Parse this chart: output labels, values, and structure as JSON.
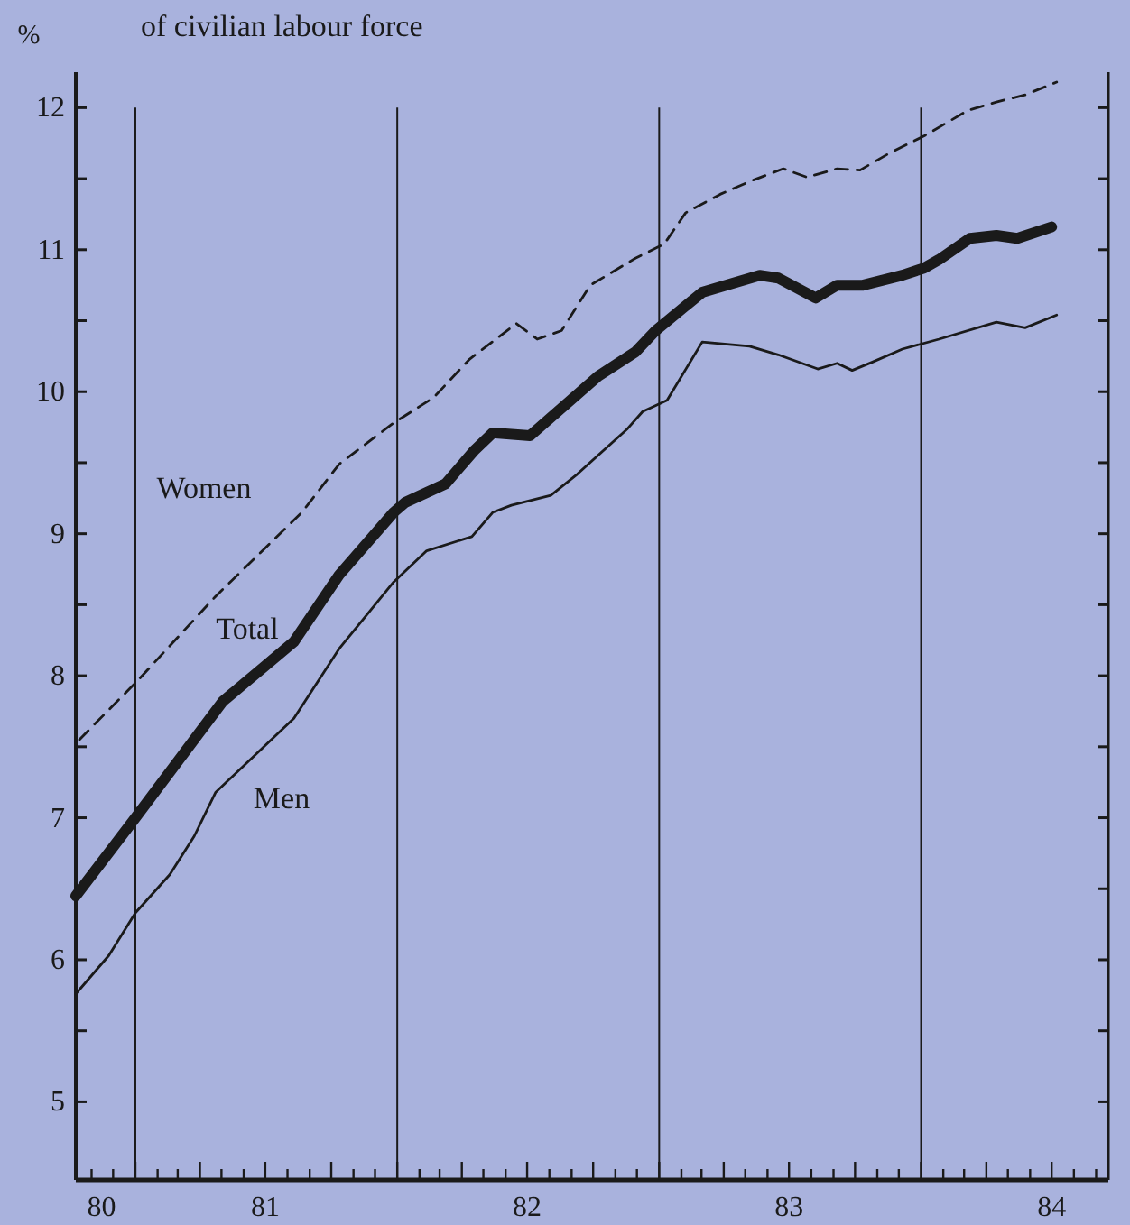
{
  "chart_data": {
    "type": "line",
    "title": "of civilian labour force",
    "ylabel": "%",
    "xlim": [
      "1980-10-10",
      "1984-09-18"
    ],
    "ylim": [
      4.45,
      12.25
    ],
    "yticks": [
      5,
      {
        "value": 5.5,
        "label": null
      },
      6,
      {
        "value": 6.5,
        "label": null
      },
      7,
      {
        "value": 7.5,
        "label": null
      },
      8,
      {
        "value": 8.5,
        "label": null
      },
      9,
      {
        "value": 9.5,
        "label": null
      },
      10,
      {
        "value": 10.5,
        "label": null
      },
      11,
      {
        "value": 11.5,
        "label": null
      },
      12
    ],
    "xticks": [
      {
        "value": "1980-11-15",
        "label": "80"
      },
      {
        "value": "1981-07",
        "label": "81"
      },
      {
        "value": "1982-07",
        "label": "82"
      },
      {
        "value": "1983-07",
        "label": "83"
      },
      {
        "value": "1984-07",
        "label": "84"
      },
      {
        "value": "1980-11",
        "label": null
      },
      {
        "value": "1980-12",
        "label": null
      },
      {
        "value": "1981-01",
        "label": null
      },
      {
        "value": "1981-02",
        "label": null
      },
      {
        "value": "1981-03",
        "label": null
      },
      {
        "value": "1981-04",
        "label": null
      },
      {
        "value": "1981-05",
        "label": null
      },
      {
        "value": "1981-06",
        "label": null
      },
      {
        "value": "1981-07",
        "label": null
      },
      {
        "value": "1981-08",
        "label": null
      },
      {
        "value": "1981-09",
        "label": null
      },
      {
        "value": "1981-10",
        "label": null
      },
      {
        "value": "1981-11",
        "label": null
      },
      {
        "value": "1981-12",
        "label": null
      },
      {
        "value": "1982-01",
        "label": null
      },
      {
        "value": "1982-02",
        "label": null
      },
      {
        "value": "1982-03",
        "label": null
      },
      {
        "value": "1982-04",
        "label": null
      },
      {
        "value": "1982-05",
        "label": null
      },
      {
        "value": "1982-06",
        "label": null
      },
      {
        "value": "1982-07",
        "label": null
      },
      {
        "value": "1982-08",
        "label": null
      },
      {
        "value": "1982-09",
        "label": null
      },
      {
        "value": "1982-10",
        "label": null
      },
      {
        "value": "1982-11",
        "label": null
      },
      {
        "value": "1982-12",
        "label": null
      },
      {
        "value": "1983-01",
        "label": null
      },
      {
        "value": "1983-02",
        "label": null
      },
      {
        "value": "1983-03",
        "label": null
      },
      {
        "value": "1983-04",
        "label": null
      },
      {
        "value": "1983-05",
        "label": null
      },
      {
        "value": "1983-06",
        "label": null
      },
      {
        "value": "1983-07",
        "label": null
      },
      {
        "value": "1983-08",
        "label": null
      },
      {
        "value": "1983-09",
        "label": null
      },
      {
        "value": "1983-10",
        "label": null
      },
      {
        "value": "1983-11",
        "label": null
      },
      {
        "value": "1983-12",
        "label": null
      },
      {
        "value": "1984-01",
        "label": null
      },
      {
        "value": "1984-02",
        "label": null
      },
      {
        "value": "1984-03",
        "label": null
      },
      {
        "value": "1984-04",
        "label": null
      },
      {
        "value": "1984-05",
        "label": null
      },
      {
        "value": "1984-06",
        "label": null
      },
      {
        "value": "1984-07",
        "label": null
      },
      {
        "value": "1984-08",
        "label": null
      },
      {
        "value": "1984-09",
        "label": null
      }
    ],
    "ref_lines": [
      {
        "axis": "x",
        "value": "1981-01"
      },
      {
        "axis": "x",
        "value": "1982-01"
      },
      {
        "axis": "x",
        "value": "1983-01"
      },
      {
        "axis": "x",
        "value": "1984-01"
      }
    ],
    "series": [
      {
        "name": "Women",
        "color": "#1a1a1a",
        "line_style": "dashed",
        "x": [
          "1980-10-15",
          "1981-01-05",
          "1981-04-23",
          "1981-08-21",
          "1981-10-12",
          "1981-12-27",
          "1982-02-21",
          "1982-04-12",
          "1982-06-16",
          "1982-07-15",
          "1982-08-18",
          "1982-09-27",
          "1982-11-29",
          "1983-01-08",
          "1983-02-07",
          "1983-03-27",
          "1983-05-07",
          "1983-06-23",
          "1983-07-26",
          "1983-09-06",
          "1983-10-08",
          "1983-11-18",
          "1984-01-05",
          "1984-03-06",
          "1984-04-15",
          "1984-05-25",
          "1984-07-08"
        ],
        "values": [
          7.55,
          7.97,
          8.56,
          9.15,
          9.49,
          9.78,
          9.96,
          10.23,
          10.48,
          10.37,
          10.43,
          10.75,
          10.94,
          11.04,
          11.26,
          11.39,
          11.48,
          11.57,
          11.51,
          11.57,
          11.56,
          11.68,
          11.8,
          11.98,
          12.04,
          12.09,
          12.18
        ]
      },
      {
        "name": "Total",
        "color": "#1a1a1a",
        "line_style": "solid",
        "x": [
          "1980-10-10",
          "1981-01-01",
          "1981-05-03",
          "1981-07-01",
          "1981-08-10",
          "1981-10-12",
          "1981-12-27",
          "1982-01-12",
          "1982-03-09",
          "1982-04-19",
          "1982-05-14",
          "1982-07-05",
          "1982-10-08",
          "1982-11-29",
          "1982-12-27",
          "1983-03-02",
          "1983-05-21",
          "1983-06-16",
          "1983-08-07",
          "1983-09-06",
          "1983-10-12",
          "1983-12-06",
          "1984-01-05",
          "1984-01-26",
          "1984-03-09",
          "1984-04-15",
          "1984-05-14",
          "1984-07-01"
        ],
        "values": [
          6.45,
          7.0,
          7.82,
          8.07,
          8.24,
          8.71,
          9.15,
          9.22,
          9.35,
          9.59,
          9.71,
          9.69,
          10.11,
          10.28,
          10.43,
          10.7,
          10.82,
          10.8,
          10.66,
          10.75,
          10.75,
          10.82,
          10.87,
          10.93,
          11.08,
          11.1,
          11.08,
          11.16
        ]
      },
      {
        "name": "Men",
        "color": "#1a1a1a",
        "line_style": "solid",
        "x": [
          "1980-10-10",
          "1980-11-25",
          "1981-01-01",
          "1981-02-18",
          "1981-03-24",
          "1981-04-23",
          "1981-08-10",
          "1981-10-12",
          "1981-12-27",
          "1982-02-11",
          "1982-04-15",
          "1982-05-14",
          "1982-06-09",
          "1982-08-03",
          "1982-09-09",
          "1982-11-18",
          "1982-12-09",
          "1983-01-12",
          "1983-03-02",
          "1983-05-07",
          "1983-06-16",
          "1983-08-10",
          "1983-09-06",
          "1983-09-27",
          "1983-10-26",
          "1983-12-06",
          "1984-01-26",
          "1984-04-15",
          "1984-05-25",
          "1984-07-08"
        ],
        "values": [
          5.76,
          6.03,
          6.33,
          6.6,
          6.87,
          7.18,
          7.7,
          8.19,
          8.66,
          8.88,
          8.98,
          9.15,
          9.2,
          9.27,
          9.42,
          9.74,
          9.86,
          9.94,
          10.35,
          10.32,
          10.26,
          10.16,
          10.2,
          10.15,
          10.21,
          10.3,
          10.37,
          10.49,
          10.45,
          10.54
        ]
      }
    ]
  }
}
